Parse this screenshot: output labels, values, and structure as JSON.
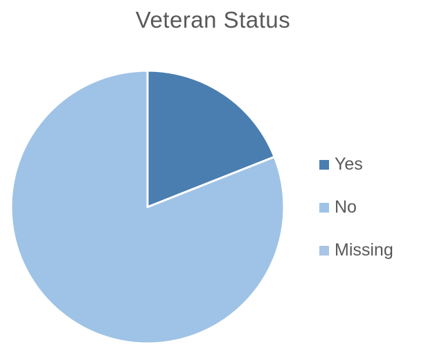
{
  "chart_data": {
    "type": "pie",
    "title": "Veteran Status",
    "categories": [
      "Yes",
      "No",
      "Missing"
    ],
    "values": [
      19,
      81,
      0
    ],
    "colors": [
      "#4a7eb0",
      "#9fc3e6",
      "#a9c4e4"
    ],
    "legend_position": "right",
    "start_angle": "12 o'clock",
    "direction": "clockwise"
  }
}
